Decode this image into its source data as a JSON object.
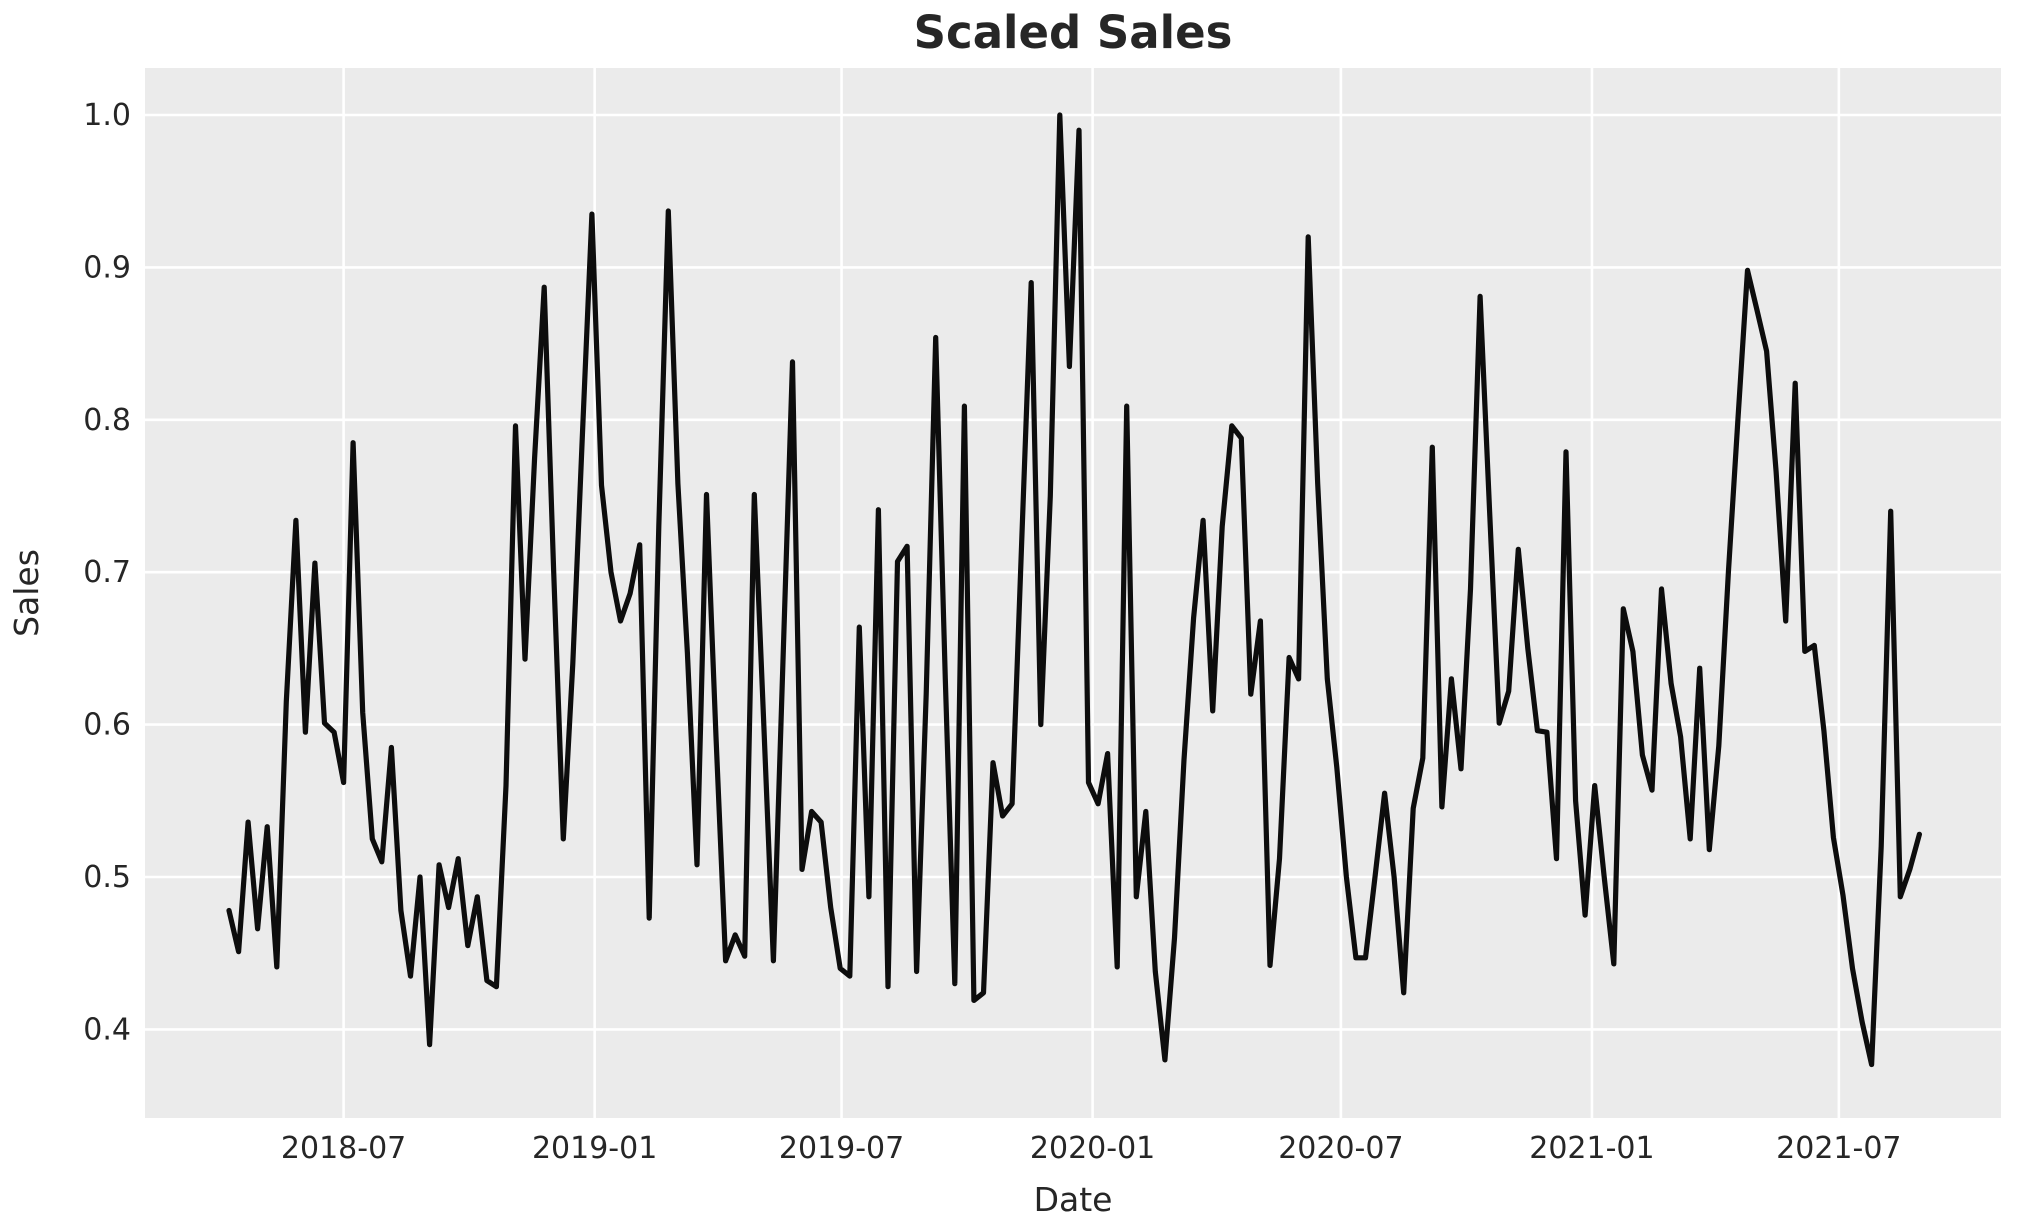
{
  "chart_data": {
    "type": "line",
    "title": "Scaled Sales",
    "xlabel": "Date",
    "ylabel": "Sales",
    "series_name": "scaled-sales",
    "grid": true,
    "legend": false,
    "colors": {
      "line": "#0d0d0d",
      "plot_background": "#ebebeb",
      "figure_background": "#ffffff",
      "gridline": "#ffffff",
      "text": "#262626"
    },
    "y_ticks": [
      {
        "label": "1.0",
        "value": 1.0
      },
      {
        "label": "0.9",
        "value": 0.9
      },
      {
        "label": "0.8",
        "value": 0.8
      },
      {
        "label": "0.7",
        "value": 0.7
      },
      {
        "label": "0.6",
        "value": 0.6
      },
      {
        "label": "0.5",
        "value": 0.5
      },
      {
        "label": "0.4",
        "value": 0.4
      }
    ],
    "x_ticks": [
      {
        "label": "2018-07",
        "date": "2018-07-01"
      },
      {
        "label": "2019-01",
        "date": "2019-01-01"
      },
      {
        "label": "2019-07",
        "date": "2019-07-01"
      },
      {
        "label": "2020-01",
        "date": "2020-01-01"
      },
      {
        "label": "2020-07",
        "date": "2020-07-01"
      },
      {
        "label": "2021-01",
        "date": "2021-01-01"
      },
      {
        "label": "2021-07",
        "date": "2021-07-01"
      }
    ],
    "ylim": [
      0.34,
      1.03
    ],
    "xlim_dates": [
      "2018-02-04",
      "2021-10-25"
    ],
    "x": {
      "start_date": "2018-04-08",
      "step_days": 7,
      "count": 178
    },
    "values": [
      0.478,
      0.451,
      0.536,
      0.466,
      0.533,
      0.441,
      0.615,
      0.734,
      0.595,
      0.706,
      0.601,
      0.595,
      0.562,
      0.785,
      0.608,
      0.525,
      0.51,
      0.585,
      0.478,
      0.435,
      0.5,
      0.39,
      0.508,
      0.48,
      0.512,
      0.455,
      0.487,
      0.432,
      0.428,
      0.56,
      0.796,
      0.643,
      0.775,
      0.887,
      0.7,
      0.525,
      0.64,
      0.79,
      0.935,
      0.757,
      0.7,
      0.668,
      0.686,
      0.718,
      0.473,
      0.73,
      0.937,
      0.758,
      0.647,
      0.508,
      0.751,
      0.592,
      0.445,
      0.462,
      0.448,
      0.751,
      0.6,
      0.445,
      0.64,
      0.838,
      0.505,
      0.543,
      0.536,
      0.48,
      0.44,
      0.435,
      0.664,
      0.487,
      0.741,
      0.428,
      0.707,
      0.717,
      0.438,
      0.62,
      0.854,
      0.63,
      0.43,
      0.809,
      0.419,
      0.424,
      0.575,
      0.54,
      0.548,
      0.72,
      0.89,
      0.6,
      0.75,
      1.0,
      0.835,
      0.99,
      0.562,
      0.548,
      0.581,
      0.441,
      0.809,
      0.487,
      0.543,
      0.438,
      0.38,
      0.46,
      0.577,
      0.67,
      0.734,
      0.609,
      0.73,
      0.796,
      0.788,
      0.62,
      0.668,
      0.442,
      0.512,
      0.644,
      0.63,
      0.92,
      0.758,
      0.63,
      0.572,
      0.5,
      0.447,
      0.447,
      0.5,
      0.555,
      0.5,
      0.424,
      0.545,
      0.578,
      0.782,
      0.546,
      0.63,
      0.571,
      0.689,
      0.881,
      0.74,
      0.601,
      0.622,
      0.715,
      0.65,
      0.596,
      0.595,
      0.512,
      0.779,
      0.55,
      0.475,
      0.56,
      0.5,
      0.443,
      0.676,
      0.648,
      0.58,
      0.557,
      0.689,
      0.627,
      0.592,
      0.525,
      0.637,
      0.518,
      0.586,
      0.7,
      0.8,
      0.898,
      0.872,
      0.845,
      0.766,
      0.668,
      0.824,
      0.648,
      0.652,
      0.596,
      0.526,
      0.488,
      0.44,
      0.405,
      0.377,
      0.52,
      0.74,
      0.487,
      0.505,
      0.528
    ]
  }
}
